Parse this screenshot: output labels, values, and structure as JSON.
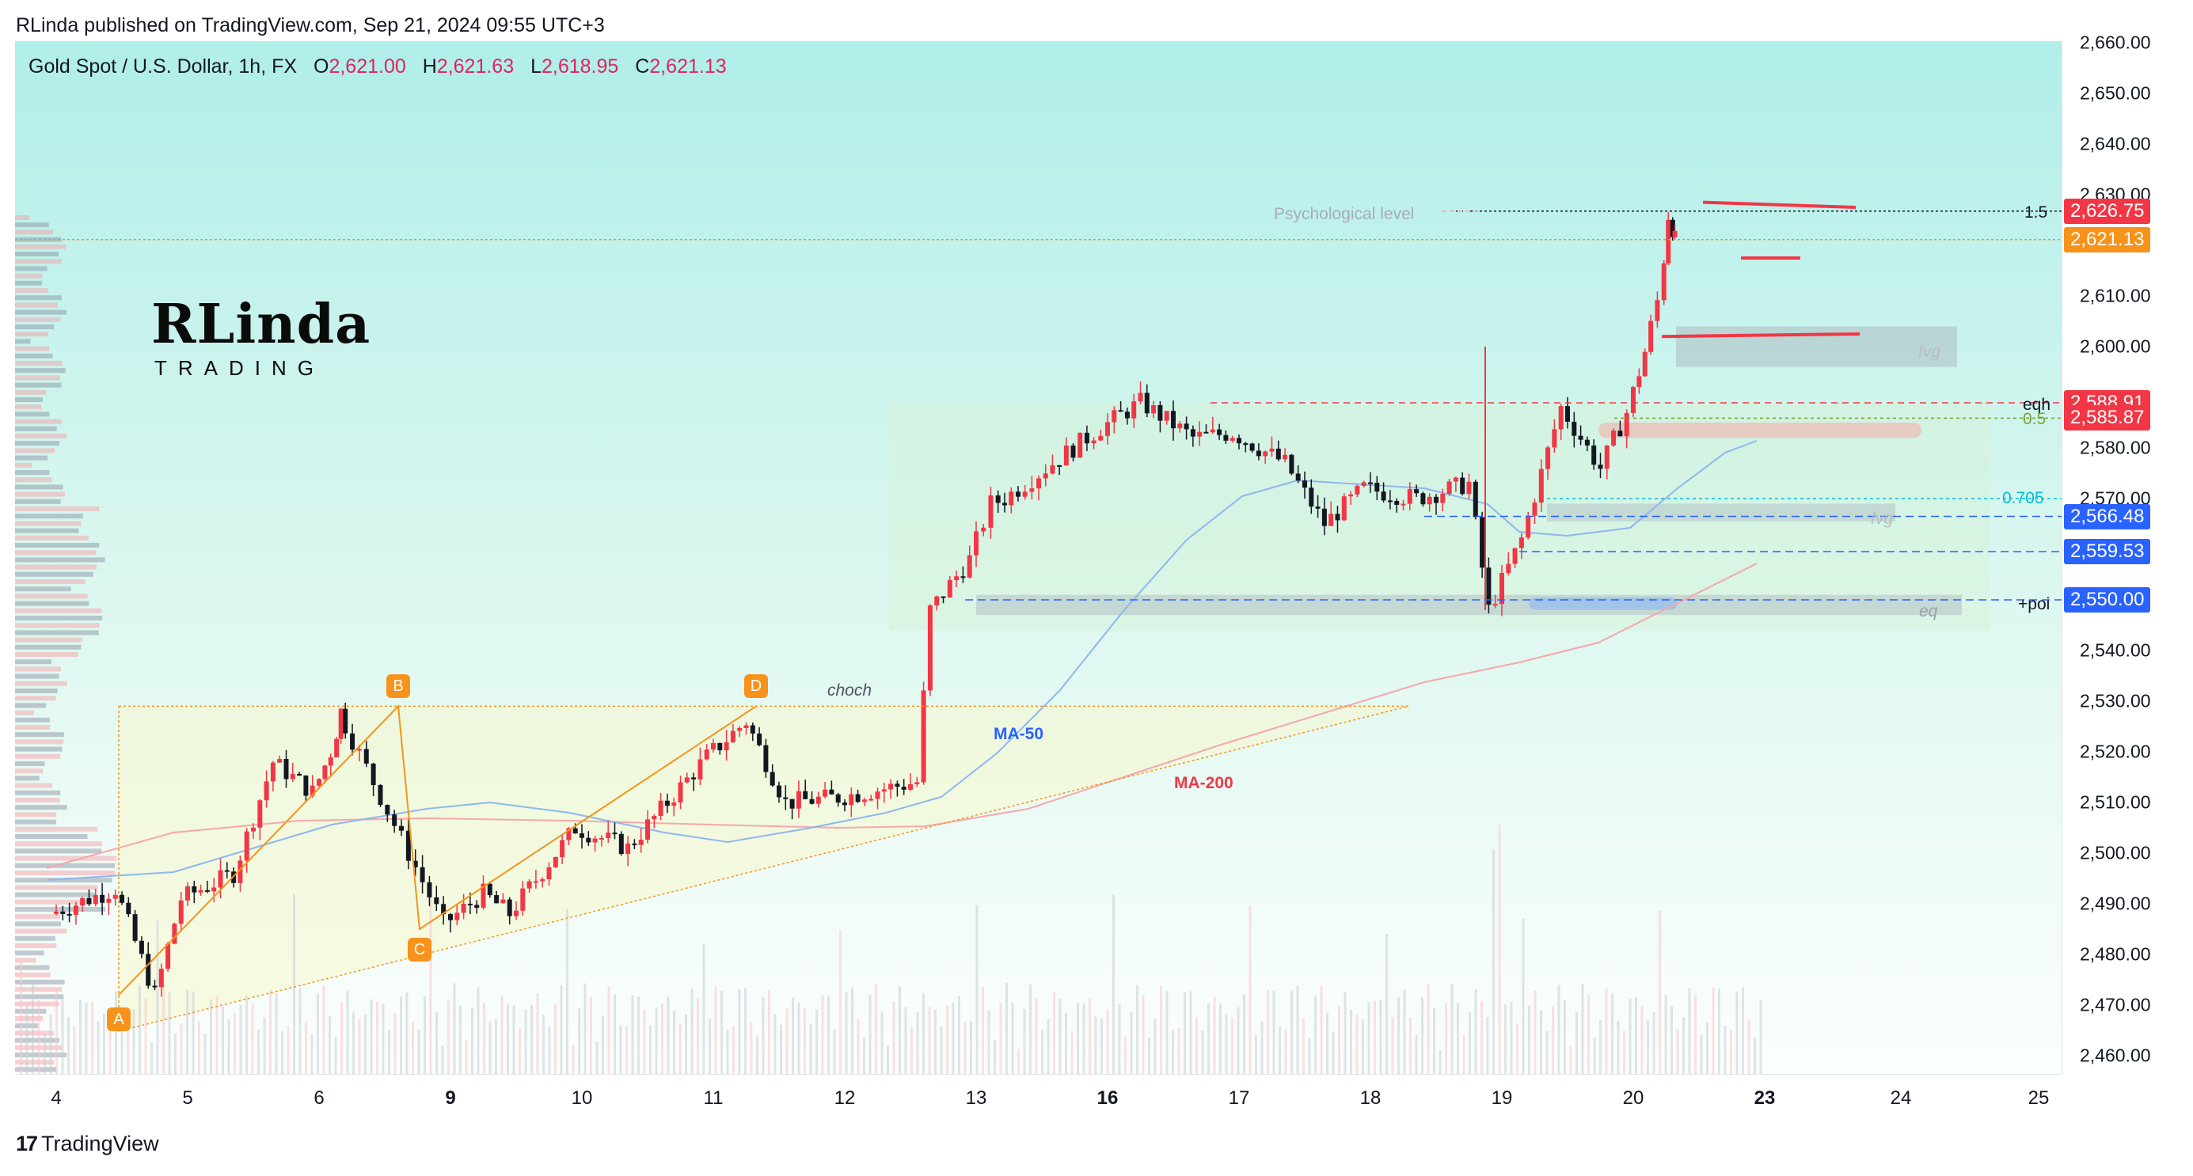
{
  "header": {
    "published": "RLinda published on TradingView.com, Sep 21, 2024 09:55 UTC+3"
  },
  "legend": {
    "symbol": "Gold Spot / U.S. Dollar, 1h, FX",
    "open_key": "O",
    "open": "2,621.00",
    "high_key": "H",
    "high": "2,621.63",
    "low_key": "L",
    "low": "2,618.95",
    "close_key": "C",
    "close": "2,621.13"
  },
  "logo": {
    "main": "RLinda",
    "sub": "TRADING"
  },
  "footer": {
    "brand": "TradingView",
    "mark": "17"
  },
  "price_axis": {
    "ticks": [
      "2,660.00",
      "2,650.00",
      "2,640.00",
      "2,630.00",
      "2,610.00",
      "2,600.00",
      "2,580.00",
      "2,570.00",
      "2,540.00",
      "2,530.00",
      "2,520.00",
      "2,510.00",
      "2,500.00",
      "2,490.00",
      "2,480.00",
      "2,470.00",
      "2,460.00"
    ],
    "tags": [
      {
        "label": "2,626.75",
        "color": "#f23645"
      },
      {
        "label": "2,621.13",
        "color": "#f7931a"
      },
      {
        "label": "2,588.91",
        "color": "#f23645"
      },
      {
        "label": "2,585.87",
        "color": "#f23645"
      },
      {
        "label": "2,566.48",
        "color": "#2962ff"
      },
      {
        "label": "2,559.53",
        "color": "#2962ff"
      },
      {
        "label": "2,550.00",
        "color": "#2962ff"
      }
    ]
  },
  "time_axis": {
    "labels": [
      {
        "text": "4",
        "bold": false
      },
      {
        "text": "5",
        "bold": false
      },
      {
        "text": "6",
        "bold": false
      },
      {
        "text": "9",
        "bold": true
      },
      {
        "text": "10",
        "bold": false
      },
      {
        "text": "11",
        "bold": false
      },
      {
        "text": "12",
        "bold": false
      },
      {
        "text": "13",
        "bold": false
      },
      {
        "text": "16",
        "bold": true
      },
      {
        "text": "17",
        "bold": false
      },
      {
        "text": "18",
        "bold": false
      },
      {
        "text": "19",
        "bold": false
      },
      {
        "text": "20",
        "bold": false
      },
      {
        "text": "23",
        "bold": true
      },
      {
        "text": "24",
        "bold": false
      },
      {
        "text": "25",
        "bold": false
      }
    ]
  },
  "annotations": {
    "psychological": "Psychological level",
    "fib_1_5": "1.5",
    "eqh": "eqh",
    "fib_0_5": "0.5",
    "fib_0_705": "0.705",
    "fvg_top": "fvg",
    "fvg_mid": "fvg",
    "poi": "+poi",
    "eq": "eq",
    "choch": "choch",
    "ma50": "MA-50",
    "ma200": "MA-200",
    "points": [
      "A",
      "B",
      "C",
      "D"
    ]
  },
  "colors": {
    "up": "#f23645",
    "down": "#131722",
    "ma50": "#2962ff",
    "ma200": "#f23645",
    "accent_orange": "#f7931a",
    "level_blue": "#2962ff",
    "fib_cyan": "#00bcd4"
  },
  "chart_data": {
    "type": "candlestick",
    "title": "Gold Spot / U.S. Dollar, 1h, FX",
    "ylim": [
      2455,
      2662
    ],
    "x_labels": [
      "4",
      "5",
      "6",
      "9",
      "10",
      "11",
      "12",
      "13",
      "16",
      "17",
      "18",
      "19",
      "20",
      "23",
      "24",
      "25"
    ],
    "series": [
      {
        "name": "price",
        "points": [
          {
            "day": "4",
            "price": 2488
          },
          {
            "day": "4.5",
            "price": 2493
          },
          {
            "day": "4.8",
            "price": 2472
          },
          {
            "day": "5",
            "price": 2491
          },
          {
            "day": "5.4",
            "price": 2496
          },
          {
            "day": "5.7",
            "price": 2518
          },
          {
            "day": "6",
            "price": 2512
          },
          {
            "day": "6.4",
            "price": 2520
          },
          {
            "day": "6.6",
            "price": 2528
          },
          {
            "day": "9",
            "price": 2486
          },
          {
            "day": "9.3",
            "price": 2492
          },
          {
            "day": "9.5",
            "price": 2488
          },
          {
            "day": "10",
            "price": 2505
          },
          {
            "day": "10.4",
            "price": 2501
          },
          {
            "day": "10.8",
            "price": 2513
          },
          {
            "day": "11",
            "price": 2519
          },
          {
            "day": "11.3",
            "price": 2526
          },
          {
            "day": "11.6",
            "price": 2510
          },
          {
            "day": "12",
            "price": 2511
          },
          {
            "day": "12.6",
            "price": 2514
          },
          {
            "day": "12.7",
            "price": 2548
          },
          {
            "day": "13",
            "price": 2558
          },
          {
            "day": "13.5",
            "price": 2569
          },
          {
            "day": "13.8",
            "price": 2570
          },
          {
            "day": "16",
            "price": 2584
          },
          {
            "day": "16.3",
            "price": 2589
          },
          {
            "day": "16.7",
            "price": 2582
          },
          {
            "day": "17",
            "price": 2583
          },
          {
            "day": "17.4",
            "price": 2577
          },
          {
            "day": "17.7",
            "price": 2565
          },
          {
            "day": "18",
            "price": 2572
          },
          {
            "day": "18.4",
            "price": 2570
          },
          {
            "day": "18.8",
            "price": 2573
          },
          {
            "day": "18.95",
            "price": 2548
          },
          {
            "day": "19.2",
            "price": 2562
          },
          {
            "day": "19.5",
            "price": 2588
          },
          {
            "day": "19.8",
            "price": 2576
          },
          {
            "day": "20",
            "price": 2587
          },
          {
            "day": "20.4",
            "price": 2599
          },
          {
            "day": "20.7",
            "price": 2609
          },
          {
            "day": "20.9",
            "price": 2626
          },
          {
            "day": "21",
            "price": 2621
          }
        ]
      },
      {
        "name": "MA-50"
      },
      {
        "name": "MA-200"
      }
    ],
    "levels": [
      {
        "label": "Psychological level",
        "price": 2626.75
      },
      {
        "label": "eqh",
        "price": 2588.91
      },
      {
        "label": "0.5",
        "price": 2585.87
      },
      {
        "label": "0.705",
        "price": 2570
      },
      {
        "price": 2566.48
      },
      {
        "price": 2559.53
      },
      {
        "label": "+poi",
        "price": 2550.0
      }
    ],
    "pattern_points": [
      {
        "name": "A",
        "price": 2472
      },
      {
        "name": "B",
        "price": 2529
      },
      {
        "name": "C",
        "price": 2485
      },
      {
        "name": "D",
        "price": 2529
      }
    ]
  }
}
